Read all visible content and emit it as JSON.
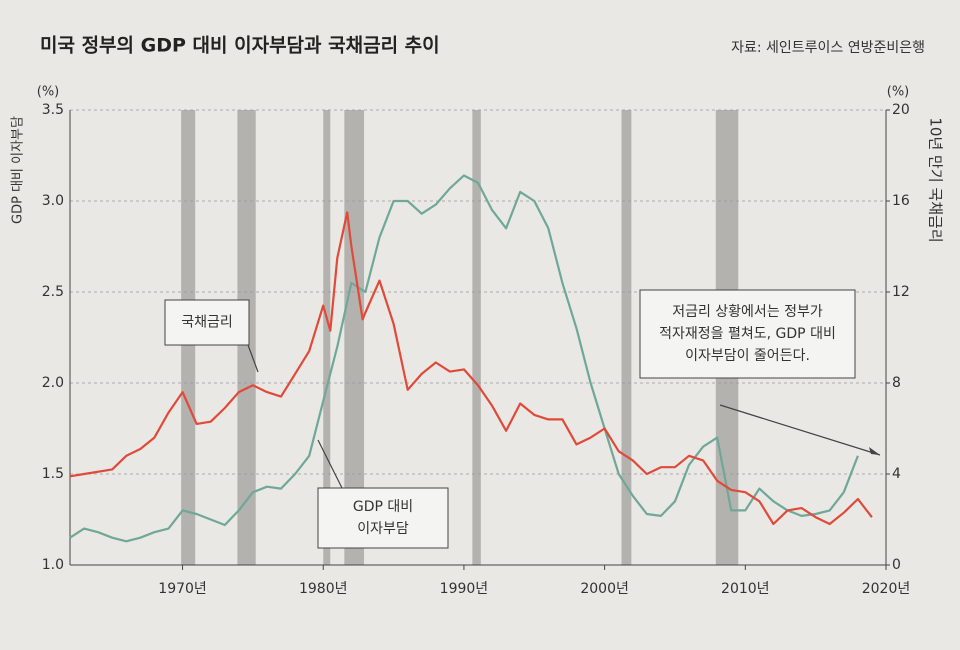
{
  "chart_data": {
    "type": "line",
    "title": "미국 정부의 GDP 대비 이자부담과 국채금리 추이",
    "source": "자료: 세인트루이스 연방준비은행",
    "y_label": "GDP 대비 이자부담",
    "y2_label": "10년 만기 국채금리",
    "y_unit": "(%)",
    "y2_unit": "(%)",
    "xlim": [
      1962,
      2020
    ],
    "xticks": [
      {
        "value": 1970,
        "label": "1970년"
      },
      {
        "value": 1980,
        "label": "1980년"
      },
      {
        "value": 1990,
        "label": "1990년"
      },
      {
        "value": 2000,
        "label": "2000년"
      },
      {
        "value": 2010,
        "label": "2010년"
      },
      {
        "value": 2020,
        "label": "2020년"
      }
    ],
    "ylim": [
      1,
      3.5
    ],
    "yticks": [
      {
        "value": 1,
        "label": "1.0"
      },
      1.5,
      {
        "value": 2,
        "label": "2.0"
      },
      2.5,
      {
        "value": 3,
        "label": "3.0"
      },
      3.5
    ],
    "y2lim": [
      0,
      20
    ],
    "y2ticks": [
      0,
      4,
      8,
      12,
      16,
      20
    ],
    "grid": true,
    "shaded_periods": [
      [
        1969.9,
        1970.9
      ],
      [
        1973.9,
        1975.2
      ],
      [
        1980.0,
        1980.5
      ],
      [
        1981.5,
        1982.9
      ],
      [
        1990.6,
        1991.2
      ],
      [
        2001.2,
        2001.9
      ],
      [
        2007.9,
        2009.5
      ]
    ],
    "series": [
      {
        "name": "GDP 대비 이자부담",
        "color": "#6fa898",
        "axis": "y",
        "x": [
          1962,
          1963,
          1964,
          1965,
          1966,
          1967,
          1968,
          1969,
          1970,
          1971,
          1972,
          1973,
          1974,
          1975,
          1976,
          1977,
          1978,
          1979,
          1980,
          1981,
          1982,
          1983,
          1984,
          1985,
          1986,
          1987,
          1988,
          1989,
          1990,
          1991,
          1992,
          1993,
          1994,
          1995,
          1996,
          1997,
          1998,
          1999,
          2000,
          2001,
          2002,
          2003,
          2004,
          2005,
          2006,
          2007,
          2008,
          2009,
          2010,
          2011,
          2012,
          2013,
          2014,
          2015,
          2016,
          2017,
          2018
        ],
        "values": [
          1.15,
          1.2,
          1.18,
          1.15,
          1.13,
          1.15,
          1.18,
          1.2,
          1.3,
          1.28,
          1.25,
          1.22,
          1.3,
          1.4,
          1.43,
          1.42,
          1.5,
          1.6,
          1.9,
          2.2,
          2.55,
          2.5,
          2.8,
          3.0,
          3.0,
          2.93,
          2.98,
          3.07,
          3.14,
          3.1,
          2.95,
          2.85,
          3.05,
          3.0,
          2.85,
          2.55,
          2.3,
          2.0,
          1.75,
          1.5,
          1.38,
          1.28,
          1.27,
          1.35,
          1.55,
          1.65,
          1.7,
          1.3,
          1.3,
          1.42,
          1.35,
          1.3,
          1.27,
          1.28,
          1.3,
          1.4,
          1.6
        ]
      },
      {
        "name": "국채금리",
        "color": "#e04a3a",
        "axis": "y2",
        "x": [
          1962,
          1963,
          1965,
          1966,
          1967,
          1968,
          1969,
          1970,
          1971,
          1972,
          1973,
          1974,
          1975,
          1976,
          1977,
          1978,
          1979,
          1980,
          1980.5,
          1981,
          1981.7,
          1982,
          1982.8,
          1983,
          1984,
          1985,
          1986,
          1987,
          1988,
          1989,
          1990,
          1991,
          1992,
          1993,
          1994,
          1995,
          1996,
          1997,
          1998,
          1999,
          2000,
          2001,
          2002,
          2003,
          2004,
          2005,
          2006,
          2007,
          2008,
          2009,
          2010,
          2011,
          2012,
          2013,
          2014,
          2015,
          2016,
          2017,
          2018,
          2019
        ],
        "values": [
          3.9,
          4.0,
          4.2,
          4.8,
          5.1,
          5.6,
          6.7,
          7.6,
          6.2,
          6.3,
          6.9,
          7.6,
          7.9,
          7.6,
          7.4,
          8.4,
          9.4,
          11.4,
          10.3,
          13.5,
          15.5,
          14.0,
          10.8,
          11.1,
          12.5,
          10.6,
          7.7,
          8.4,
          8.9,
          8.5,
          8.6,
          7.9,
          7.0,
          5.9,
          7.1,
          6.6,
          6.4,
          6.4,
          5.3,
          5.6,
          6.0,
          5.0,
          4.6,
          4.0,
          4.3,
          4.3,
          4.8,
          4.6,
          3.7,
          3.3,
          3.2,
          2.8,
          1.8,
          2.4,
          2.5,
          2.1,
          1.8,
          2.3,
          2.9,
          2.1
        ]
      }
    ],
    "annotations": [
      {
        "lines": [
          "국채금리"
        ]
      },
      {
        "lines": [
          "GDP 대비",
          "이자부담"
        ]
      },
      {
        "lines": [
          "저금리 상황에서는 정부가",
          "적자재정을 펼쳐도, GDP 대비",
          "이자부담이 줄어든다."
        ]
      }
    ]
  }
}
